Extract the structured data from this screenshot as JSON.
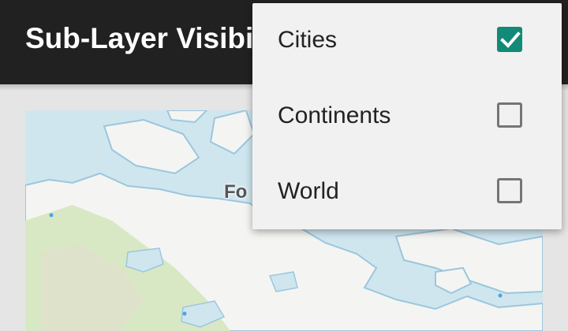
{
  "app_bar": {
    "title": "Sub-Layer Visibility"
  },
  "map": {
    "label": "Fo"
  },
  "layer_menu": {
    "items": [
      {
        "label": "Cities",
        "checked": true
      },
      {
        "label": "Continents",
        "checked": false
      },
      {
        "label": "World",
        "checked": false
      }
    ]
  },
  "colors": {
    "app_bar": "#212121",
    "checkbox_checked": "#138a78",
    "water": "#cfe6ef",
    "land": "#f4f5f2",
    "vegetation": "#d9e8c4"
  },
  "icons": {
    "check": "check-icon"
  }
}
